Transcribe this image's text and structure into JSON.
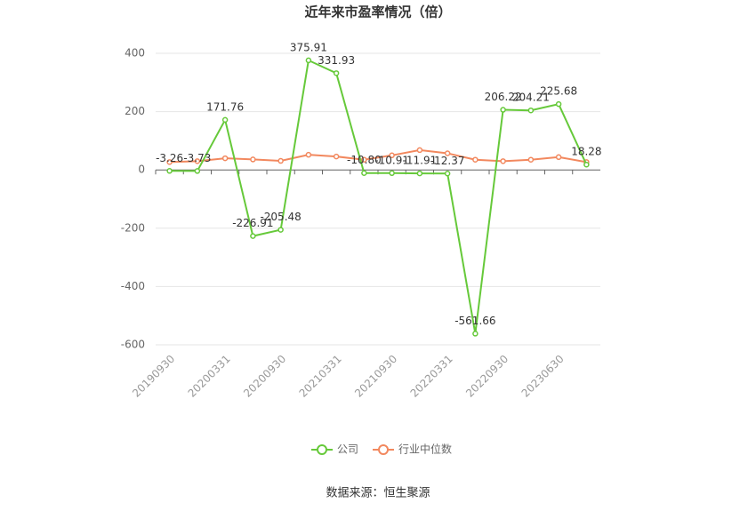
{
  "chart_data": {
    "type": "line",
    "title": "近年来市盈率情况（倍）",
    "categories": [
      "20190930",
      null,
      "20200331",
      null,
      "20200930",
      null,
      "20210331",
      null,
      "20210930",
      null,
      "20220331",
      null,
      "20220930",
      null,
      "20230630",
      null
    ],
    "series": [
      {
        "name": "公司",
        "color": "#66c93a",
        "values": [
          -3.26,
          -3.73,
          171.76,
          -226.91,
          -205.48,
          375.91,
          331.93,
          -10.8,
          -10.91,
          -11.91,
          -12.37,
          -561.66,
          206.22,
          204.21,
          225.68,
          18.28
        ],
        "value_labels": [
          "-3.26",
          "-3.73",
          "171.76",
          "-226.91",
          "-205.48",
          "375.91",
          "331.93",
          "-10.80",
          "-10.91",
          "-11.91",
          "-12.37",
          "-561.66",
          "206.22",
          "204.21",
          "225.68",
          "18.28"
        ]
      },
      {
        "name": "行业中位数",
        "color": "#f2885e",
        "values": [
          27,
          30,
          40,
          36,
          31,
          52,
          46,
          35,
          50,
          68,
          57,
          35,
          30,
          35,
          44,
          27
        ]
      }
    ],
    "ylim": [
      -600,
      400
    ],
    "yticks": [
      -600,
      -400,
      -200,
      0,
      200,
      400
    ],
    "grid": true,
    "source": "数据来源：恒生聚源"
  }
}
